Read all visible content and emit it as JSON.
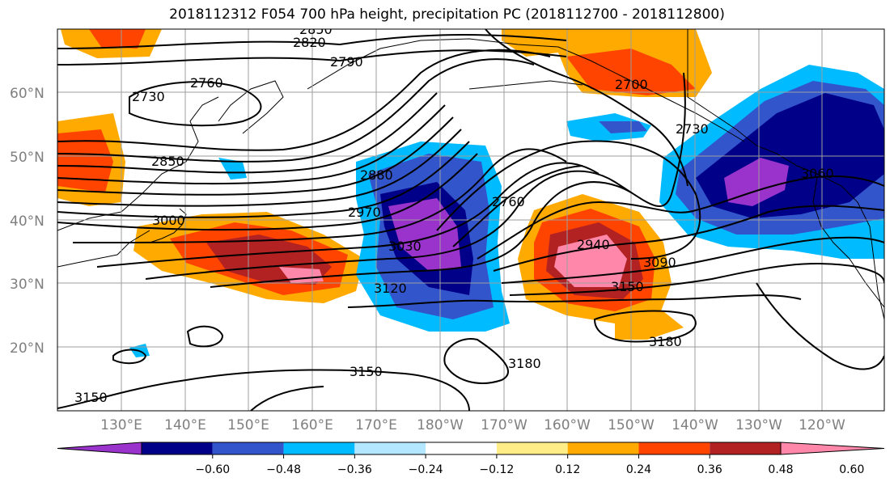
{
  "title": "2018112312 F054 700 hPa height, precipitation PC (2018112700 - 2018112800)",
  "map": {
    "lat_labels": [
      "20°N",
      "30°N",
      "40°N",
      "50°N",
      "60°N"
    ],
    "lon_labels": [
      "130°E",
      "140°E",
      "150°E",
      "160°E",
      "170°E",
      "180°W",
      "170°W",
      "160°W",
      "150°W",
      "140°W",
      "130°W",
      "120°W"
    ],
    "contour_labels": [
      "2850",
      "2820",
      "2790",
      "2760",
      "2730",
      "2850",
      "3000",
      "2880",
      "2970",
      "3030",
      "2760",
      "2940",
      "3090",
      "3150",
      "3120",
      "2730",
      "3060",
      "3180",
      "3180",
      "3150",
      "3150",
      "2700"
    ]
  },
  "colorbar": {
    "colors": [
      "#9933cc",
      "#000088",
      "#3355cc",
      "#00bbff",
      "#b3e6ff",
      "#ffffff",
      "#ffee88",
      "#ffaa00",
      "#ff4400",
      "#b22222",
      "#ff88aa"
    ],
    "tick_labels": [
      "−0.60",
      "−0.48",
      "−0.36",
      "−0.24",
      "−0.12",
      "0.12",
      "0.24",
      "0.36",
      "0.48",
      "0.60"
    ]
  }
}
